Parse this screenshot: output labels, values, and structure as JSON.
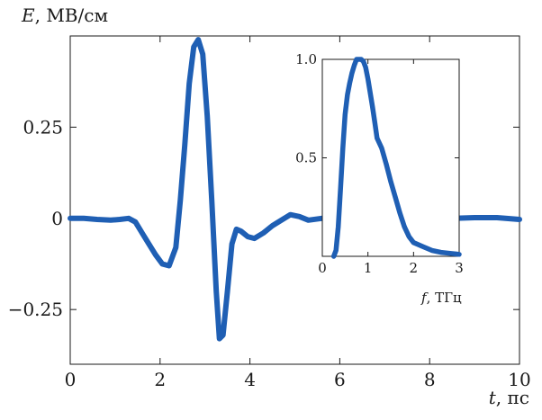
{
  "chart_data": [
    {
      "type": "line",
      "ylabel_italic": "E",
      "ylabel_unit": ", МВ/см",
      "xlabel_italic": "t",
      "xlabel_unit": ", пс",
      "xlim": [
        0,
        10
      ],
      "ylim": [
        -0.4,
        0.5
      ],
      "xticks": [
        0,
        2,
        4,
        6,
        8,
        10
      ],
      "xtick_labels": [
        "0",
        "2",
        "4",
        "6",
        "8",
        "10"
      ],
      "yticks": [
        -0.25,
        0,
        0.25
      ],
      "ytick_labels": [
        "−0.25",
        "0",
        "0.25"
      ],
      "grid": false,
      "color": "#1f5fb4",
      "series": [
        {
          "x": [
            0,
            0.3,
            0.6,
            0.9,
            1.1,
            1.3,
            1.45,
            1.6,
            1.75,
            1.9,
            2.05,
            2.2,
            2.35,
            2.45,
            2.55,
            2.65,
            2.75,
            2.85,
            2.95,
            3.05,
            3.15,
            3.25,
            3.32,
            3.4,
            3.5,
            3.6,
            3.7,
            3.8,
            3.95,
            4.1,
            4.3,
            4.5,
            4.7,
            4.9,
            5.1,
            5.3,
            5.6,
            6.0,
            6.5,
            7.0,
            7.5,
            8.0,
            8.5,
            9.0,
            9.5,
            10.0
          ],
          "y": [
            0.0,
            0.0,
            -0.003,
            -0.005,
            -0.003,
            0.0,
            -0.01,
            -0.04,
            -0.07,
            -0.1,
            -0.125,
            -0.13,
            -0.08,
            0.05,
            0.2,
            0.37,
            0.47,
            0.49,
            0.45,
            0.28,
            0.05,
            -0.2,
            -0.33,
            -0.32,
            -0.2,
            -0.07,
            -0.03,
            -0.035,
            -0.05,
            -0.055,
            -0.04,
            -0.02,
            -0.005,
            0.01,
            0.005,
            -0.005,
            0.0,
            0.003,
            0.005,
            0.003,
            0.005,
            0.003,
            0.0,
            0.002,
            0.002,
            -0.003
          ]
        }
      ]
    },
    {
      "type": "line",
      "xlabel_italic": "f",
      "xlabel_unit": ", ТГц",
      "xlim": [
        0,
        3
      ],
      "ylim": [
        0,
        1.0
      ],
      "xticks": [
        0,
        1,
        2,
        3
      ],
      "xtick_labels": [
        "0",
        "1",
        "2",
        "3"
      ],
      "yticks": [
        0.5,
        1.0
      ],
      "ytick_labels": [
        "0.5",
        "1.0"
      ],
      "grid": false,
      "color": "#1f5fb4",
      "series": [
        {
          "x": [
            0.25,
            0.3,
            0.35,
            0.4,
            0.45,
            0.5,
            0.55,
            0.6,
            0.65,
            0.7,
            0.75,
            0.8,
            0.85,
            0.9,
            0.95,
            1.0,
            1.05,
            1.1,
            1.15,
            1.2,
            1.3,
            1.4,
            1.5,
            1.6,
            1.7,
            1.8,
            1.9,
            2.0,
            2.2,
            2.4,
            2.6,
            2.8,
            3.0
          ],
          "y": [
            0.0,
            0.03,
            0.15,
            0.35,
            0.55,
            0.72,
            0.82,
            0.88,
            0.93,
            0.97,
            1.0,
            1.0,
            1.0,
            0.99,
            0.96,
            0.9,
            0.83,
            0.76,
            0.68,
            0.6,
            0.55,
            0.47,
            0.38,
            0.3,
            0.22,
            0.15,
            0.1,
            0.07,
            0.05,
            0.03,
            0.02,
            0.015,
            0.01
          ]
        }
      ]
    }
  ]
}
